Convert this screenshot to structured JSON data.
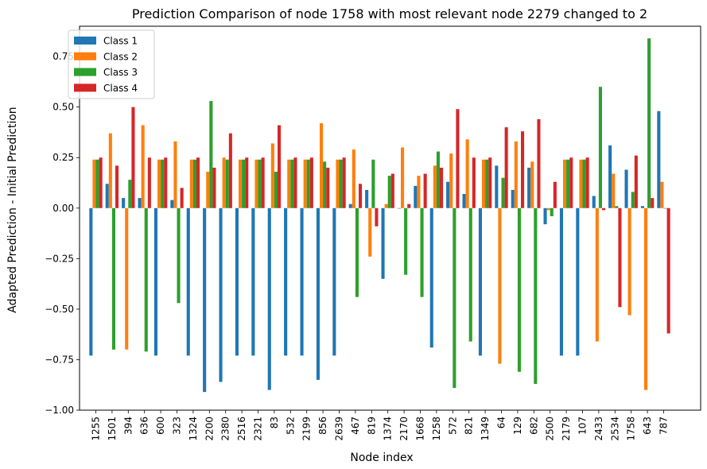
{
  "chart_data": {
    "type": "bar",
    "title": "Prediction Comparison of node 1758 with most relevant node 2279 changed to 2",
    "xlabel": "Node index",
    "ylabel": "Adapted Prediction - Initial Prediction",
    "ylim": [
      -1.0,
      0.9
    ],
    "yticks": [
      -1.0,
      -0.75,
      -0.5,
      -0.25,
      0.0,
      0.25,
      0.5,
      0.75
    ],
    "ytick_labels": [
      "−1.00",
      "−0.75",
      "−0.50",
      "−0.25",
      "0.00",
      "0.25",
      "0.50",
      "0.75"
    ],
    "grid": false,
    "legend_position": "top-left",
    "categories": [
      "1255",
      "1501",
      "394",
      "636",
      "600",
      "323",
      "1324",
      "2200",
      "2380",
      "2516",
      "2321",
      "83",
      "532",
      "2199",
      "856",
      "2639",
      "467",
      "819",
      "1374",
      "2170",
      "1668",
      "1258",
      "572",
      "821",
      "1349",
      "64",
      "129",
      "682",
      "2500",
      "2179",
      "107",
      "2433",
      "2534",
      "1758",
      "643",
      "787"
    ],
    "series": [
      {
        "name": "Class 1",
        "color": "#1f77b4",
        "values": [
          -0.73,
          0.12,
          0.05,
          0.05,
          -0.73,
          0.04,
          -0.73,
          -0.91,
          -0.86,
          -0.73,
          -0.73,
          -0.9,
          -0.73,
          -0.73,
          -0.85,
          -0.73,
          0.02,
          0.09,
          -0.35,
          0.0,
          0.11,
          -0.69,
          0.13,
          0.07,
          -0.73,
          0.21,
          0.09,
          0.2,
          -0.08,
          -0.73,
          -0.73,
          0.06,
          0.31,
          0.19,
          0.01,
          0.48
        ]
      },
      {
        "name": "Class 2",
        "color": "#ff7f0e",
        "values": [
          0.24,
          0.37,
          -0.7,
          0.41,
          0.24,
          0.33,
          0.24,
          0.18,
          0.25,
          0.24,
          0.24,
          0.32,
          0.24,
          0.24,
          0.42,
          0.24,
          0.29,
          -0.24,
          0.02,
          0.3,
          0.16,
          0.21,
          0.27,
          0.34,
          0.24,
          -0.77,
          0.33,
          0.23,
          -0.01,
          0.24,
          0.24,
          -0.66,
          0.17,
          -0.53,
          -0.9,
          0.13
        ]
      },
      {
        "name": "Class 3",
        "color": "#2ca02c",
        "values": [
          0.24,
          -0.7,
          0.14,
          -0.71,
          0.24,
          -0.47,
          0.24,
          0.53,
          0.24,
          0.24,
          0.24,
          0.18,
          0.24,
          0.24,
          0.23,
          0.24,
          -0.44,
          0.24,
          0.16,
          -0.33,
          -0.44,
          0.28,
          -0.89,
          -0.66,
          0.24,
          0.15,
          -0.81,
          -0.87,
          -0.04,
          0.24,
          0.24,
          0.6,
          0.01,
          0.08,
          0.84,
          0.0
        ]
      },
      {
        "name": "Class 4",
        "color": "#d62728",
        "values": [
          0.25,
          0.21,
          0.5,
          0.25,
          0.25,
          0.1,
          0.25,
          0.2,
          0.37,
          0.25,
          0.25,
          0.41,
          0.25,
          0.25,
          0.2,
          0.25,
          0.12,
          -0.09,
          0.17,
          0.02,
          0.17,
          0.2,
          0.49,
          0.25,
          0.25,
          0.4,
          0.38,
          0.44,
          0.13,
          0.25,
          0.25,
          -0.01,
          -0.49,
          0.26,
          0.05,
          -0.62
        ]
      }
    ]
  }
}
